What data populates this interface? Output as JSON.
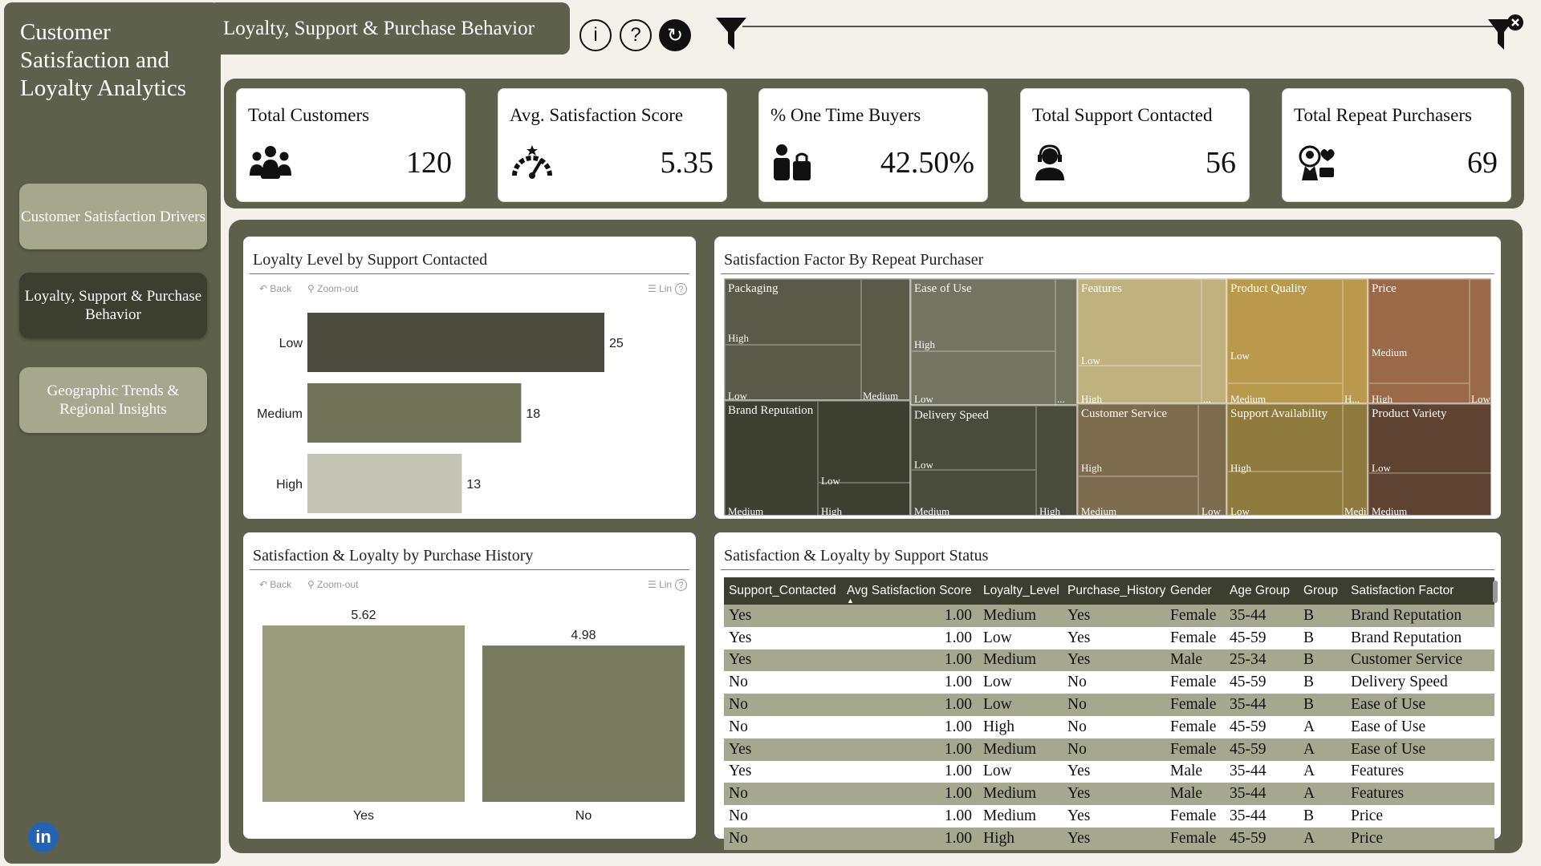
{
  "app": {
    "title": "Customer Satisfaction and Loyalty Analytics",
    "page_tab": "Loyalty, Support & Purchase Behavior"
  },
  "nav": {
    "items": [
      {
        "label": "Customer Satisfaction Drivers",
        "active": false
      },
      {
        "label": "Loyalty, Support & Purchase Behavior",
        "active": true
      },
      {
        "label": "Geographic Trends & Regional Insights",
        "active": false
      }
    ],
    "linkedin_label": "in"
  },
  "header": {
    "info_icon": "i",
    "help_icon": "?",
    "reset_icon": "↻"
  },
  "kpis": [
    {
      "title": "Total Customers",
      "value": "120",
      "icon": "people-group-icon"
    },
    {
      "title": "Avg. Satisfaction Score",
      "value": "5.35",
      "icon": "satisfaction-gauge-icon"
    },
    {
      "title": "% One Time Buyers",
      "value": "42.50%",
      "icon": "buyer-bag-icon"
    },
    {
      "title": "Total Support Contacted",
      "value": "56",
      "icon": "support-agent-icon"
    },
    {
      "title": "Total Repeat Purchasers",
      "value": "69",
      "icon": "loyal-customer-icon"
    }
  ],
  "toolbar": {
    "back": "Back",
    "zoom_out": "Zoom-out",
    "lin": "Lin",
    "help": "?"
  },
  "colors": {
    "sidebar": "#5d614b",
    "dark": "#3c3e30",
    "light": "#a5a78f"
  },
  "chart_data": [
    {
      "type": "bar",
      "orientation": "horizontal",
      "title": "Loyalty Level by Support Contacted",
      "categories": [
        "Low",
        "Medium",
        "High"
      ],
      "values": [
        25,
        18,
        13
      ],
      "colors": [
        "#4a4b3c",
        "#717359",
        "#c3c4b4"
      ],
      "xlim": [
        0,
        25
      ]
    },
    {
      "type": "bar",
      "title": "Satisfaction & Loyalty by Purchase History",
      "categories": [
        "Yes",
        "No"
      ],
      "values": [
        5.62,
        4.98
      ],
      "colors": [
        "#9b9c7e",
        "#777a5f"
      ],
      "ylim": [
        0,
        5.62
      ]
    },
    {
      "type": "treemap",
      "title": "Satisfaction Factor By Repeat Purchaser",
      "groups": [
        {
          "name": "Packaging",
          "sub": [
            "High",
            "Low",
            "Medium"
          ],
          "color": "#595b48"
        },
        {
          "name": "Ease of Use",
          "sub": [
            "High",
            "Low",
            "..."
          ],
          "color": "#737560"
        },
        {
          "name": "Features",
          "sub": [
            "Low",
            "High",
            "..."
          ],
          "color": "#c0b27e"
        },
        {
          "name": "Product Quality",
          "sub": [
            "Low",
            "Medium",
            "H..."
          ],
          "color": "#b99a4c"
        },
        {
          "name": "Price",
          "sub": [
            "Medium",
            "High",
            "Low"
          ],
          "color": "#9a6a48"
        },
        {
          "name": "Brand Reputation",
          "sub": [
            "Medium",
            "Low",
            "High"
          ],
          "color": "#3d3f31"
        },
        {
          "name": "Delivery Speed",
          "sub": [
            "Low",
            "Medium",
            "High"
          ],
          "color": "#4a4c3b"
        },
        {
          "name": "Customer Service",
          "sub": [
            "High",
            "Medium",
            "Low"
          ],
          "color": "#7d6b4e"
        },
        {
          "name": "Support Availability",
          "sub": [
            "High",
            "Low",
            "Medi..."
          ],
          "color": "#8f7a3e"
        },
        {
          "name": "Product Variety",
          "sub": [
            "Low",
            "Medium"
          ],
          "color": "#5e4331"
        }
      ]
    },
    {
      "type": "table",
      "title": "Satisfaction & Loyalty by Support Status",
      "columns": [
        "Support_Contacted",
        "Avg Satisfaction Score",
        "Loyalty_Level",
        "Purchase_History",
        "Gender",
        "Age Group",
        "Group",
        "Satisfaction Factor"
      ],
      "rows": [
        [
          "Yes",
          "1.00",
          "Medium",
          "Yes",
          "Female",
          "35-44",
          "B",
          "Brand Reputation"
        ],
        [
          "Yes",
          "1.00",
          "Low",
          "Yes",
          "Female",
          "45-59",
          "B",
          "Brand Reputation"
        ],
        [
          "Yes",
          "1.00",
          "Medium",
          "Yes",
          "Male",
          "25-34",
          "B",
          "Customer Service"
        ],
        [
          "No",
          "1.00",
          "Low",
          "No",
          "Female",
          "45-59",
          "B",
          "Delivery Speed"
        ],
        [
          "No",
          "1.00",
          "Low",
          "No",
          "Female",
          "35-44",
          "B",
          "Ease of Use"
        ],
        [
          "No",
          "1.00",
          "High",
          "No",
          "Female",
          "45-59",
          "A",
          "Ease of Use"
        ],
        [
          "Yes",
          "1.00",
          "Medium",
          "No",
          "Female",
          "45-59",
          "A",
          "Ease of Use"
        ],
        [
          "Yes",
          "1.00",
          "Low",
          "Yes",
          "Male",
          "35-44",
          "A",
          "Features"
        ],
        [
          "No",
          "1.00",
          "Medium",
          "Yes",
          "Male",
          "35-44",
          "A",
          "Features"
        ],
        [
          "No",
          "1.00",
          "Medium",
          "Yes",
          "Female",
          "35-44",
          "B",
          "Price"
        ],
        [
          "No",
          "1.00",
          "High",
          "Yes",
          "Female",
          "45-59",
          "A",
          "Price"
        ]
      ]
    }
  ]
}
